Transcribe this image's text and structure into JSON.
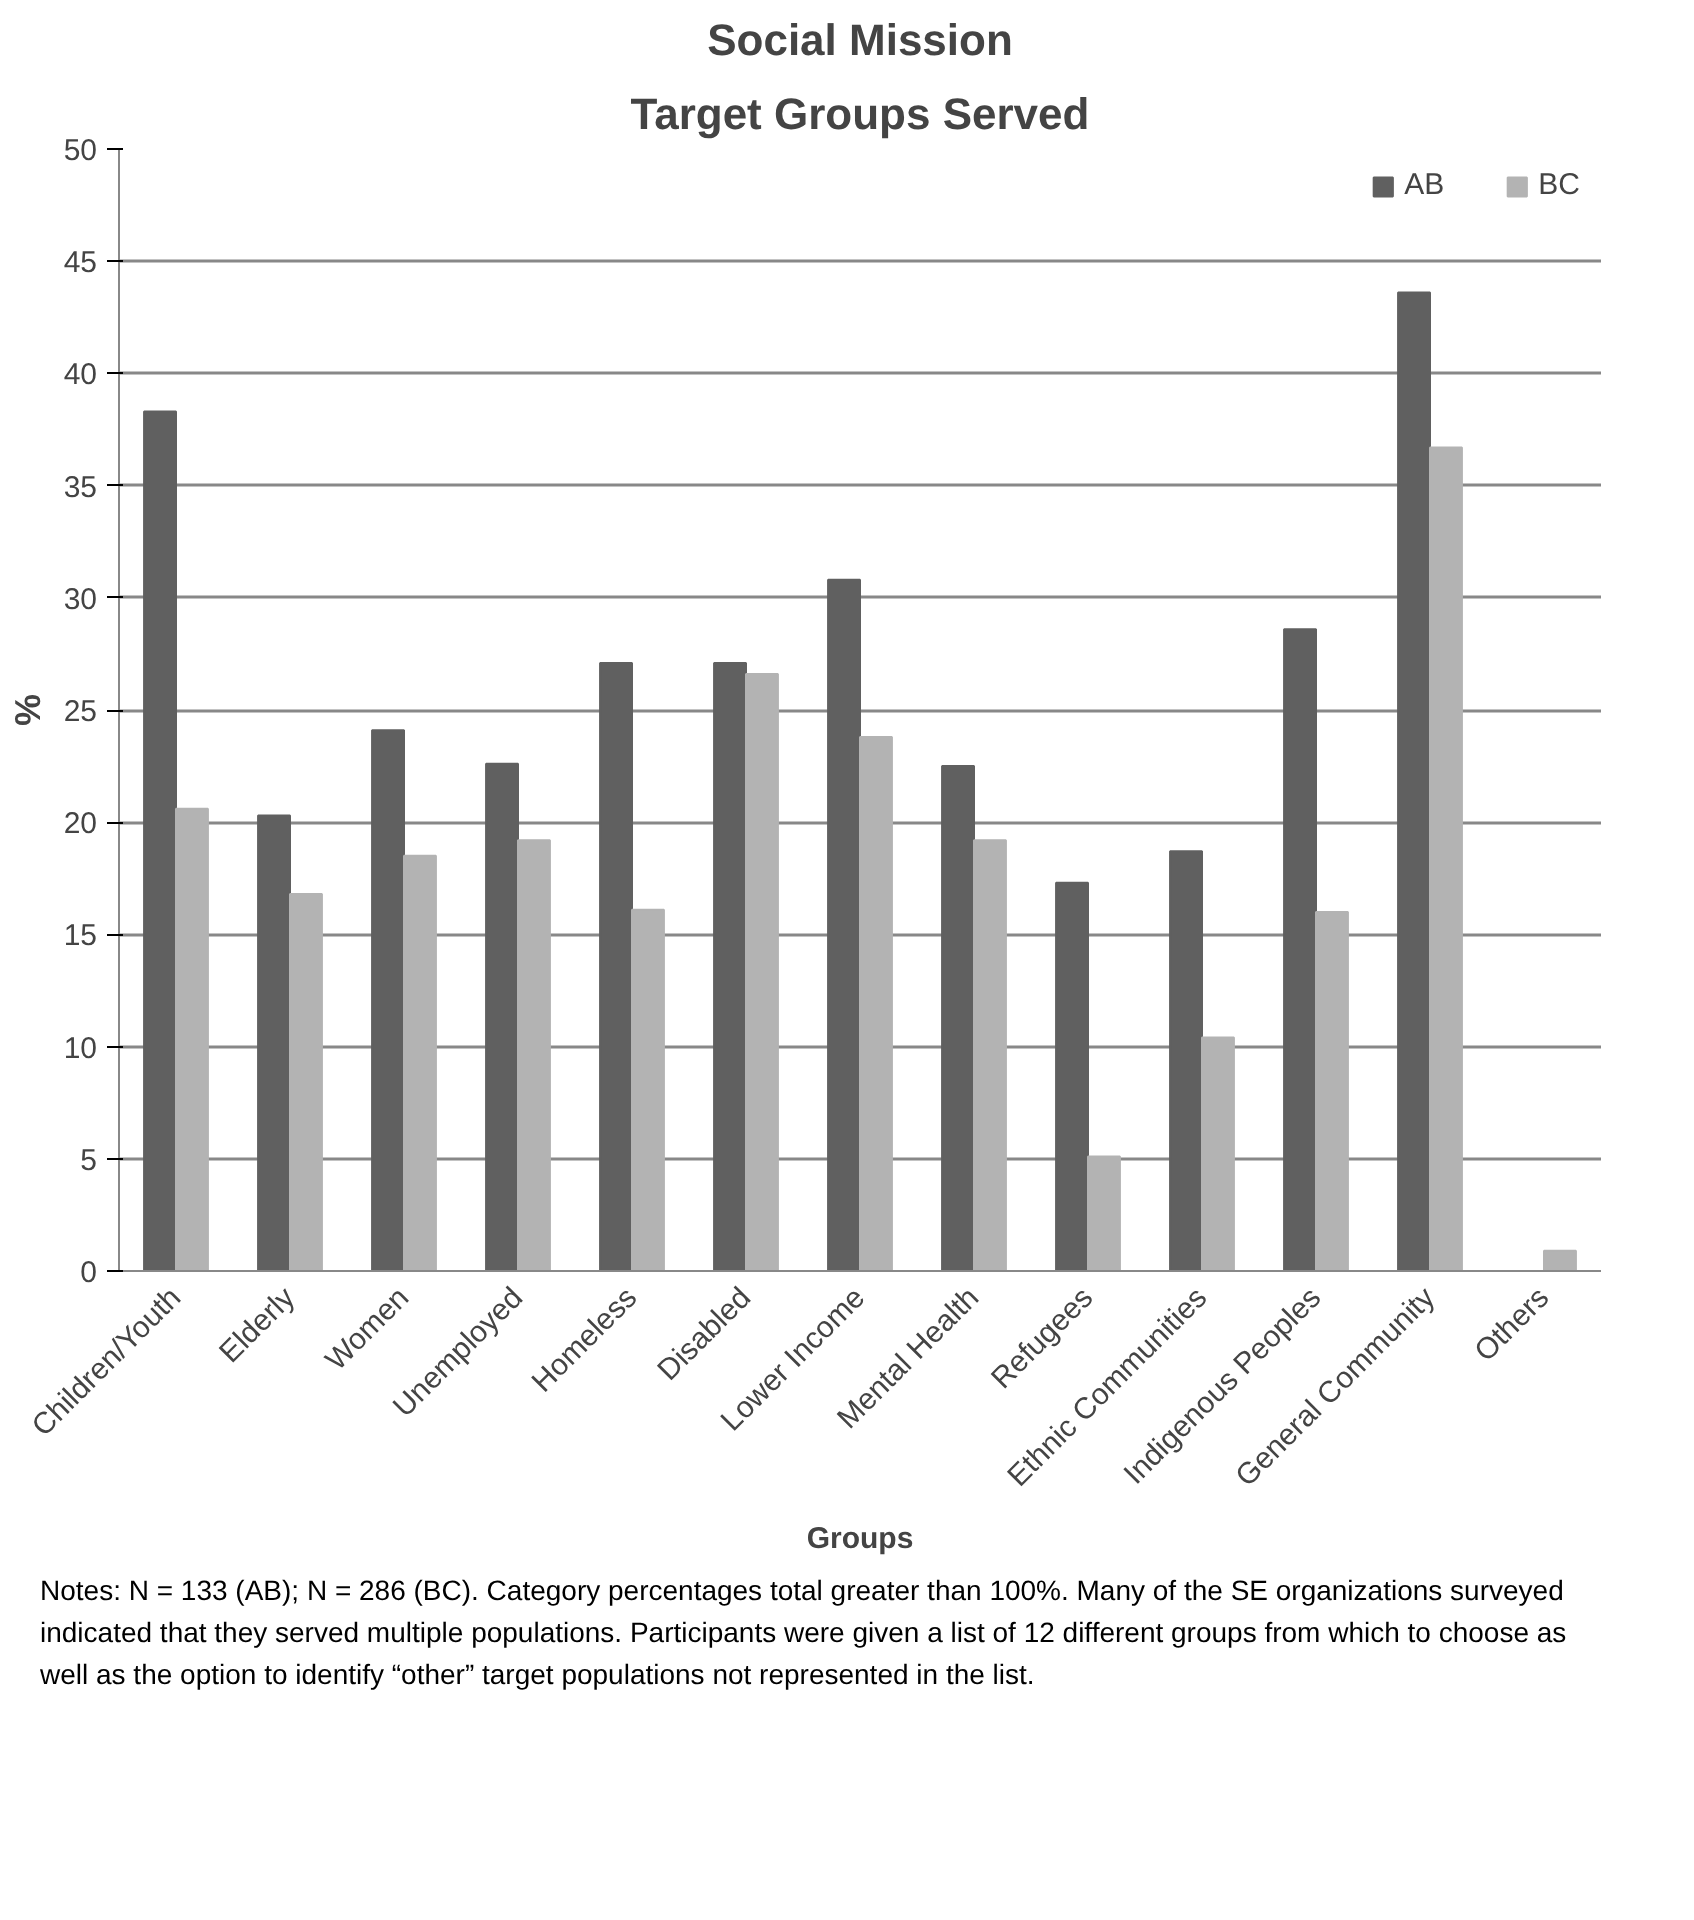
{
  "chart_data": {
    "type": "bar",
    "title": "Social Mission",
    "subtitle": "Target Groups Served",
    "xlabel": "Groups",
    "ylabel": "%",
    "categories": [
      "Children/Youth",
      "Elderly",
      "Women",
      "Unemployed",
      "Homeless",
      "Disabled",
      "Lower Income",
      "Mental Health",
      "Refugees",
      "Ethnic Communities",
      "Indigenous Peoples",
      "General Community",
      "Others"
    ],
    "series": [
      {
        "name": "AB",
        "color": "#606060",
        "values": [
          38.3,
          20.3,
          24.1,
          22.6,
          27.1,
          27.1,
          30.8,
          22.5,
          17.3,
          18.7,
          28.6,
          43.6,
          0
        ]
      },
      {
        "name": "BC",
        "color": "#b3b3b3",
        "values": [
          20.6,
          16.8,
          18.5,
          19.2,
          16.1,
          26.6,
          23.8,
          19.2,
          5.1,
          10.4,
          16.0,
          36.7,
          0.9
        ]
      }
    ],
    "ylim": [
      0,
      50
    ],
    "yticks": [
      0,
      5,
      10,
      15,
      20,
      25,
      30,
      35,
      40,
      45,
      50
    ],
    "grid": "y",
    "legend": "top right",
    "annotations": [
      "Notes: N = 133 (AB); N = 286 (BC). Category percentages total greater than 100%. Many of the SE organizations surveyed indicated that they served multiple populations. Participants were given a list of 12 different groups from which to choose as well as the option to identify “other” target populations not represented in the list."
    ]
  }
}
